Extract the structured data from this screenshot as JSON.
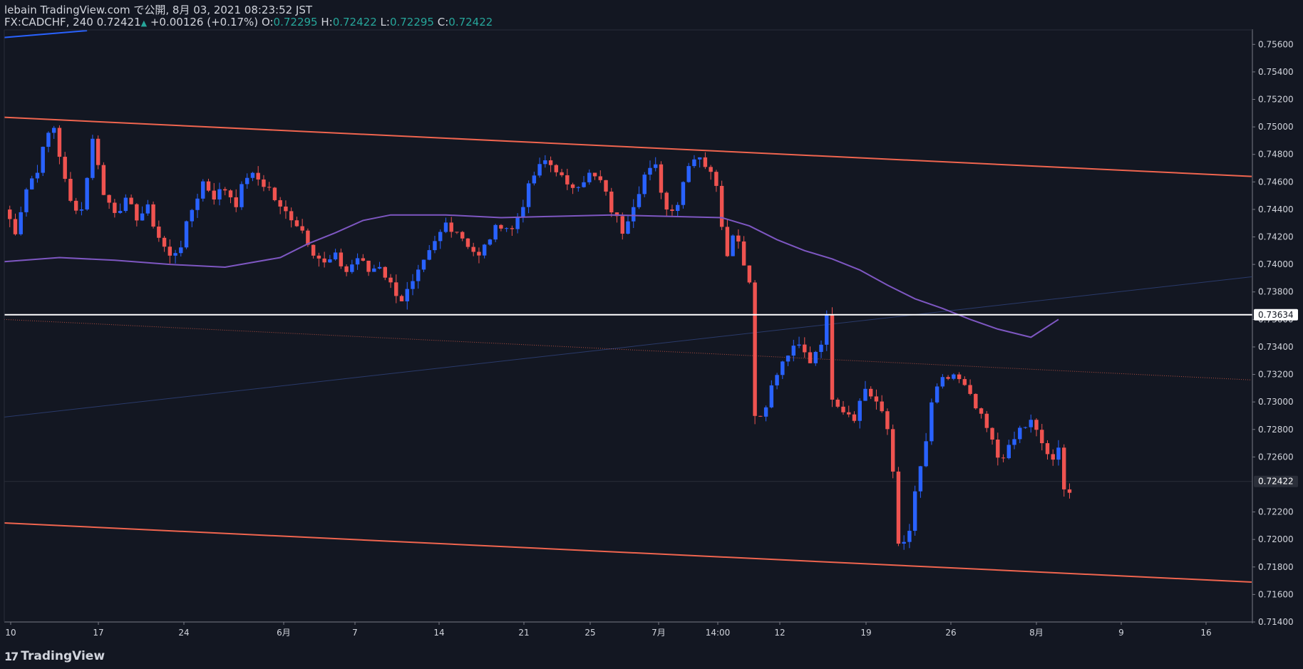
{
  "header": {
    "publisher": "lebain TradingView.com で公開, 8月 03, 2021 08:23:52 JST",
    "symbol": "FX:CADCHF, 240",
    "last": "0.72421",
    "change": "+0.00126 (+0.17%)",
    "open_label": "O:",
    "open": "0.72295",
    "high_label": "H:",
    "high": "0.72422",
    "low_label": "L:",
    "low": "0.72295",
    "close_label": "C:",
    "close": "0.72422"
  },
  "footer": {
    "brand": "TradingView"
  },
  "colors": {
    "background": "#131722",
    "up": "#2962ff",
    "down": "#ef5350",
    "channel": "#f0654f",
    "ma": "#7e57c2",
    "hline": "#ffffff",
    "axis_text": "#d1d4dc"
  },
  "chart_data": {
    "type": "candlestick",
    "symbol": "FX:CADCHF",
    "timeframe": "240",
    "ylim": [
      0.714,
      0.757
    ],
    "y_ticks": [
      "0.75600",
      "0.75400",
      "0.75200",
      "0.75000",
      "0.74800",
      "0.74600",
      "0.74400",
      "0.74200",
      "0.74000",
      "0.73800",
      "0.73600",
      "0.73400",
      "0.73200",
      "0.73000",
      "0.72800",
      "0.72600",
      "0.72200",
      "0.72000",
      "0.71800",
      "0.71600",
      "0.71400"
    ],
    "y_tick_values": [
      0.756,
      0.754,
      0.752,
      0.75,
      0.748,
      0.746,
      0.744,
      0.742,
      0.74,
      0.738,
      0.736,
      0.734,
      0.732,
      0.73,
      0.728,
      0.726,
      0.722,
      0.72,
      0.718,
      0.716,
      0.714
    ],
    "x_ticks": [
      "10",
      "17",
      "24",
      "6月",
      "7",
      "14",
      "21",
      "25",
      "7月",
      "14:00",
      "12",
      "19",
      "26",
      "8月",
      "9",
      "16"
    ],
    "price_labels": {
      "horizontal_line": "0.73634",
      "current": "0.72422"
    },
    "horizontal_line_value": 0.73634,
    "current_value": 0.72422,
    "close_path": [
      [
        0,
        0.744
      ],
      [
        2,
        0.7425
      ],
      [
        4,
        0.7455
      ],
      [
        6,
        0.747
      ],
      [
        8,
        0.7495
      ],
      [
        9,
        0.75
      ],
      [
        10,
        0.748
      ],
      [
        11,
        0.746
      ],
      [
        12,
        0.7445
      ],
      [
        14,
        0.744
      ],
      [
        16,
        0.749
      ],
      [
        17,
        0.7475
      ],
      [
        18,
        0.745
      ],
      [
        20,
        0.744
      ],
      [
        22,
        0.7445
      ],
      [
        24,
        0.7435
      ],
      [
        26,
        0.744
      ],
      [
        28,
        0.742
      ],
      [
        30,
        0.7405
      ],
      [
        32,
        0.7415
      ],
      [
        34,
        0.744
      ],
      [
        36,
        0.746
      ],
      [
        38,
        0.745
      ],
      [
        40,
        0.7455
      ],
      [
        42,
        0.7445
      ],
      [
        44,
        0.7465
      ],
      [
        46,
        0.7462
      ],
      [
        48,
        0.7455
      ],
      [
        50,
        0.744
      ],
      [
        52,
        0.7435
      ],
      [
        54,
        0.7425
      ],
      [
        56,
        0.741
      ],
      [
        58,
        0.74
      ],
      [
        60,
        0.7405
      ],
      [
        62,
        0.7395
      ],
      [
        64,
        0.7405
      ],
      [
        66,
        0.7395
      ],
      [
        68,
        0.74
      ],
      [
        70,
        0.7385
      ],
      [
        72,
        0.7375
      ],
      [
        74,
        0.7385
      ],
      [
        76,
        0.74
      ],
      [
        78,
        0.7415
      ],
      [
        80,
        0.743
      ],
      [
        82,
        0.7425
      ],
      [
        84,
        0.7415
      ],
      [
        86,
        0.7405
      ],
      [
        88,
        0.742
      ],
      [
        90,
        0.743
      ],
      [
        92,
        0.7425
      ],
      [
        94,
        0.7445
      ],
      [
        96,
        0.7465
      ],
      [
        98,
        0.7475
      ],
      [
        100,
        0.747
      ],
      [
        102,
        0.7455
      ],
      [
        104,
        0.746
      ],
      [
        106,
        0.7465
      ],
      [
        108,
        0.746
      ],
      [
        110,
        0.744
      ],
      [
        112,
        0.7425
      ],
      [
        114,
        0.7445
      ],
      [
        116,
        0.7465
      ],
      [
        118,
        0.747
      ],
      [
        120,
        0.744
      ],
      [
        122,
        0.7445
      ],
      [
        124,
        0.7475
      ],
      [
        126,
        0.748
      ],
      [
        128,
        0.7465
      ],
      [
        129,
        0.746
      ],
      [
        130,
        0.743
      ],
      [
        131,
        0.741
      ],
      [
        132,
        0.742
      ],
      [
        133,
        0.742
      ],
      [
        134,
        0.74
      ],
      [
        135,
        0.739
      ],
      [
        136,
        0.729
      ],
      [
        137,
        0.729
      ],
      [
        138,
        0.73
      ],
      [
        140,
        0.732
      ],
      [
        142,
        0.7335
      ],
      [
        144,
        0.734
      ],
      [
        146,
        0.733
      ],
      [
        148,
        0.7345
      ],
      [
        149,
        0.736
      ],
      [
        150,
        0.7305
      ],
      [
        152,
        0.7295
      ],
      [
        154,
        0.729
      ],
      [
        156,
        0.731
      ],
      [
        158,
        0.73
      ],
      [
        160,
        0.728
      ],
      [
        161,
        0.725
      ],
      [
        162,
        0.72
      ],
      [
        163,
        0.7195
      ],
      [
        164,
        0.7205
      ],
      [
        165,
        0.7235
      ],
      [
        166,
        0.725
      ],
      [
        167,
        0.727
      ],
      [
        168,
        0.73
      ],
      [
        170,
        0.7315
      ],
      [
        172,
        0.732
      ],
      [
        174,
        0.731
      ],
      [
        176,
        0.7295
      ],
      [
        178,
        0.728
      ],
      [
        180,
        0.726
      ],
      [
        182,
        0.7265
      ],
      [
        184,
        0.728
      ],
      [
        186,
        0.7285
      ],
      [
        188,
        0.727
      ],
      [
        190,
        0.7255
      ],
      [
        191,
        0.7265
      ],
      [
        192,
        0.724
      ],
      [
        193,
        0.7235
      ]
    ],
    "channel_upper": [
      [
        0,
        0.7507
      ],
      [
        226,
        0.7464
      ]
    ],
    "channel_lower": [
      [
        0,
        0.7212
      ],
      [
        226,
        0.7169
      ]
    ],
    "midline_dotted": [
      [
        0,
        0.736
      ],
      [
        226,
        0.7316
      ]
    ],
    "faint_trend": [
      [
        0,
        0.7289
      ],
      [
        226,
        0.7391
      ]
    ],
    "ma_200": [
      [
        0,
        0.7402
      ],
      [
        10,
        0.7405
      ],
      [
        20,
        0.7403
      ],
      [
        30,
        0.74
      ],
      [
        40,
        0.7398
      ],
      [
        50,
        0.7405
      ],
      [
        55,
        0.7415
      ],
      [
        60,
        0.7423
      ],
      [
        65,
        0.7432
      ],
      [
        70,
        0.7436
      ],
      [
        80,
        0.7436
      ],
      [
        90,
        0.7434
      ],
      [
        100,
        0.7435
      ],
      [
        110,
        0.7436
      ],
      [
        120,
        0.7435
      ],
      [
        130,
        0.7434
      ],
      [
        135,
        0.7428
      ],
      [
        140,
        0.7418
      ],
      [
        145,
        0.741
      ],
      [
        150,
        0.7404
      ],
      [
        155,
        0.7396
      ],
      [
        160,
        0.7385
      ],
      [
        165,
        0.7375
      ],
      [
        170,
        0.7368
      ],
      [
        175,
        0.736
      ],
      [
        180,
        0.7353
      ],
      [
        186,
        0.7347
      ],
      [
        191,
        0.736
      ]
    ]
  }
}
